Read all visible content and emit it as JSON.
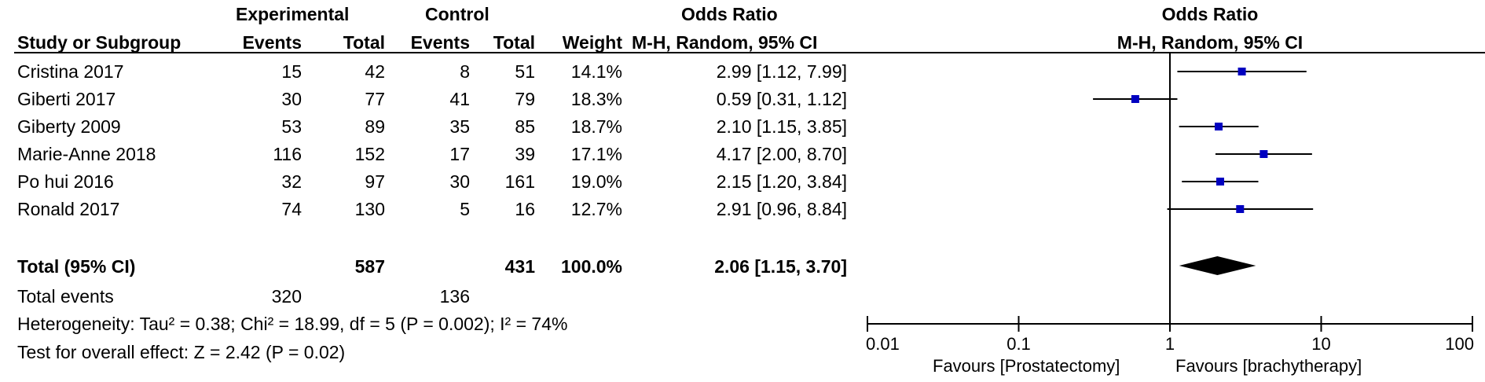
{
  "headers": {
    "experimental": "Experimental",
    "control": "Control",
    "odds_ratio": "Odds Ratio",
    "study_or_subgroup": "Study or Subgroup",
    "events": "Events",
    "total": "Total",
    "weight": "Weight",
    "method": "M-H, Random, 95% CI",
    "plot_title": "Odds Ratio",
    "plot_method": "M-H, Random, 95% CI"
  },
  "studies": [
    {
      "name": "Cristina 2017",
      "exp_events": "15",
      "exp_total": "42",
      "ctl_events": "8",
      "ctl_total": "51",
      "weight": "14.1%",
      "ci_text": "2.99 [1.12, 7.99]"
    },
    {
      "name": "Giberti 2017",
      "exp_events": "30",
      "exp_total": "77",
      "ctl_events": "41",
      "ctl_total": "79",
      "weight": "18.3%",
      "ci_text": "0.59 [0.31, 1.12]"
    },
    {
      "name": "Giberty 2009",
      "exp_events": "53",
      "exp_total": "89",
      "ctl_events": "35",
      "ctl_total": "85",
      "weight": "18.7%",
      "ci_text": "2.10 [1.15, 3.85]"
    },
    {
      "name": "Marie-Anne 2018",
      "exp_events": "116",
      "exp_total": "152",
      "ctl_events": "17",
      "ctl_total": "39",
      "weight": "17.1%",
      "ci_text": "4.17 [2.00, 8.70]"
    },
    {
      "name": "Po hui 2016",
      "exp_events": "32",
      "exp_total": "97",
      "ctl_events": "30",
      "ctl_total": "161",
      "weight": "19.0%",
      "ci_text": "2.15 [1.20, 3.84]"
    },
    {
      "name": "Ronald 2017",
      "exp_events": "74",
      "exp_total": "130",
      "ctl_events": "5",
      "ctl_total": "16",
      "weight": "12.7%",
      "ci_text": "2.91 [0.96, 8.84]"
    }
  ],
  "total": {
    "label": "Total (95% CI)",
    "exp_total": "587",
    "ctl_total": "431",
    "weight": "100.0%",
    "ci_text": "2.06 [1.15, 3.70]"
  },
  "total_events": {
    "label": "Total events",
    "exp": "320",
    "ctl": "136"
  },
  "heterogeneity": "Heterogeneity: Tau² = 0.38; Chi² = 18.99, df = 5 (P = 0.002); I² = 74%",
  "overall_effect": "Test for overall effect: Z = 2.42 (P = 0.02)",
  "favours_left": "Favours [Prostatectomy]",
  "favours_right": "Favours [brachytherapy]",
  "colors": {
    "marker": "#0000c0",
    "diamond": "#000000"
  },
  "chart_data": {
    "type": "scatter",
    "title": "Odds Ratio",
    "subtitle": "M-H, Random, 95% CI",
    "x_scale": "log",
    "xlim": [
      0.01,
      100
    ],
    "x_ticks": [
      "0.01",
      "0.1",
      "1",
      "10",
      "100"
    ],
    "reference_line": 1,
    "studies": [
      {
        "label": "Cristina 2017",
        "or": 2.99,
        "lo": 1.12,
        "hi": 7.99,
        "weight": 14.1
      },
      {
        "label": "Giberti 2017",
        "or": 0.59,
        "lo": 0.31,
        "hi": 1.12,
        "weight": 18.3
      },
      {
        "label": "Giberty 2009",
        "or": 2.1,
        "lo": 1.15,
        "hi": 3.85,
        "weight": 18.7
      },
      {
        "label": "Marie-Anne 2018",
        "or": 4.17,
        "lo": 2.0,
        "hi": 8.7,
        "weight": 17.1
      },
      {
        "label": "Po hui 2016",
        "or": 2.15,
        "lo": 1.2,
        "hi": 3.84,
        "weight": 19.0
      },
      {
        "label": "Ronald 2017",
        "or": 2.91,
        "lo": 0.96,
        "hi": 8.84,
        "weight": 12.7
      }
    ],
    "pooled": {
      "label": "Total (95% CI)",
      "or": 2.06,
      "lo": 1.15,
      "hi": 3.7
    }
  }
}
